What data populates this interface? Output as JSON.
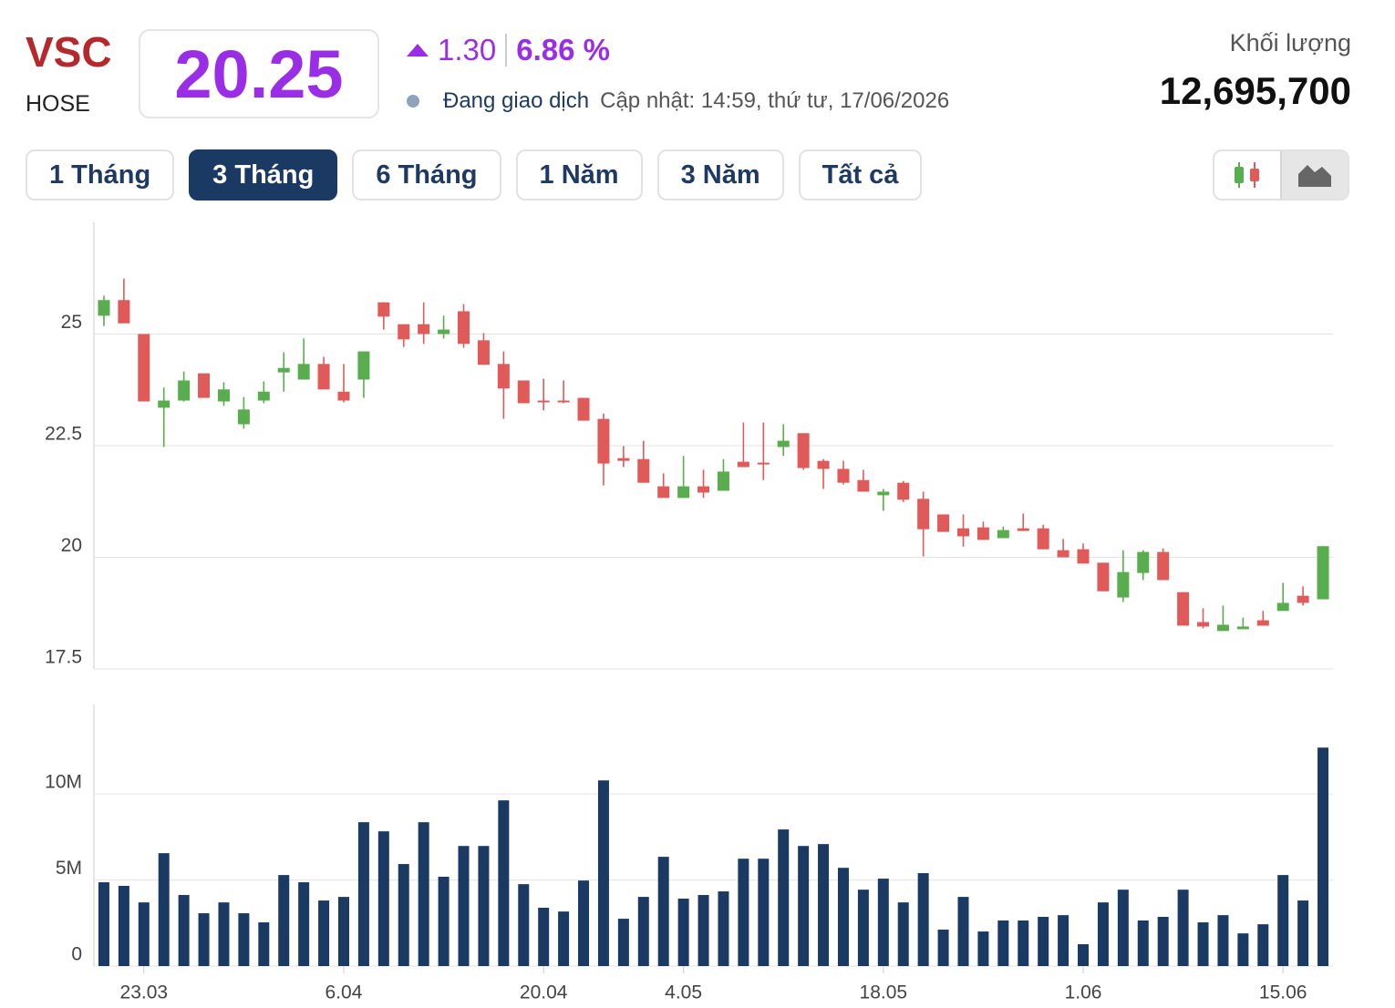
{
  "header": {
    "symbol": "VSC",
    "exchange": "HOSE",
    "price": "20.25",
    "change": "1.30",
    "change_percent": "6.86 %",
    "status": "Đang giao dịch",
    "updated": "Cập nhật: 14:59, thứ tư, 17/06/2026",
    "volume_label": "Khối lượng",
    "volume": "12,695,700"
  },
  "tabs": {
    "items": [
      "1 Tháng",
      "3 Tháng",
      "6 Tháng",
      "1 Năm",
      "3 Năm",
      "Tất cả"
    ],
    "active": 1
  },
  "chart_data": [
    {
      "type": "candlestick",
      "up_color": "#5aad4e",
      "down_color": "#e05a5a",
      "grid": true,
      "ylim": [
        17.5,
        27.5
      ],
      "yticks": [
        17.5,
        20,
        22.5,
        25
      ],
      "open": [
        25.41,
        25.76,
        25.0,
        23.35,
        23.51,
        24.12,
        23.49,
        22.98,
        23.51,
        24.14,
        23.98,
        24.33,
        23.71,
        23.98,
        25.71,
        25.22,
        25.22,
        25.0,
        25.51,
        24.86,
        24.33,
        23.96,
        23.51,
        23.51,
        23.57,
        23.1,
        22.22,
        22.2,
        21.59,
        21.33,
        21.59,
        21.49,
        22.14,
        22.12,
        22.47,
        22.78,
        22.16,
        21.98,
        21.73,
        21.39,
        21.67,
        21.31,
        20.96,
        20.65,
        20.67,
        20.43,
        20.65,
        20.65,
        20.16,
        20.18,
        19.88,
        19.1,
        19.65,
        20.12,
        19.22,
        18.55,
        18.35,
        18.39,
        18.59,
        18.8,
        19.14,
        19.06
      ],
      "high": [
        25.86,
        26.24,
        25.0,
        23.8,
        24.16,
        24.12,
        23.92,
        23.59,
        23.94,
        24.59,
        24.9,
        24.49,
        24.33,
        24.61,
        25.71,
        25.22,
        25.71,
        25.41,
        25.67,
        25.02,
        24.61,
        23.96,
        24.0,
        23.96,
        23.57,
        23.22,
        22.49,
        22.61,
        21.88,
        22.27,
        21.96,
        22.2,
        23.02,
        23.02,
        22.98,
        22.78,
        22.2,
        22.16,
        21.96,
        21.53,
        21.71,
        21.47,
        20.96,
        20.96,
        20.8,
        20.69,
        20.98,
        20.73,
        20.41,
        20.31,
        19.88,
        20.16,
        20.16,
        20.2,
        19.22,
        18.86,
        18.92,
        18.65,
        18.8,
        19.43,
        19.35,
        20.25
      ],
      "low": [
        25.18,
        25.24,
        23.49,
        22.47,
        23.49,
        23.57,
        23.39,
        22.88,
        23.45,
        23.71,
        23.98,
        23.76,
        23.47,
        23.57,
        25.1,
        24.71,
        24.78,
        24.9,
        24.69,
        24.31,
        23.1,
        23.45,
        23.29,
        23.45,
        23.06,
        21.61,
        22.02,
        21.67,
        21.33,
        21.33,
        21.33,
        21.49,
        22.02,
        21.73,
        22.27,
        21.96,
        21.53,
        21.63,
        21.47,
        21.04,
        21.24,
        20.02,
        20.57,
        20.24,
        20.39,
        20.43,
        20.59,
        20.18,
        20.0,
        19.86,
        19.24,
        19.0,
        19.49,
        19.49,
        18.47,
        18.41,
        18.35,
        18.39,
        18.47,
        18.8,
        18.92,
        19.06
      ],
      "close": [
        25.76,
        25.24,
        23.49,
        23.51,
        23.96,
        23.57,
        23.76,
        23.31,
        23.71,
        24.24,
        24.33,
        23.76,
        23.51,
        24.61,
        25.39,
        24.88,
        25.0,
        25.1,
        24.78,
        24.31,
        23.78,
        23.45,
        23.47,
        23.47,
        23.06,
        22.1,
        22.16,
        21.67,
        21.33,
        21.59,
        21.45,
        21.92,
        22.02,
        22.08,
        22.61,
        22.0,
        21.98,
        21.67,
        21.47,
        21.47,
        21.29,
        20.63,
        20.57,
        20.47,
        20.39,
        20.61,
        20.59,
        20.18,
        20.0,
        19.86,
        19.24,
        19.67,
        20.12,
        19.49,
        18.47,
        18.45,
        18.49,
        18.45,
        18.47,
        18.98,
        18.98,
        20.25
      ]
    },
    {
      "type": "bar",
      "color": "#1b3a63",
      "grid": true,
      "ylim": [
        0,
        15200000
      ],
      "yticks": [
        0,
        {
          "value": 5000000,
          "label": "5M"
        },
        {
          "value": 10000000,
          "label": "10M"
        }
      ],
      "categories": [
        null,
        null,
        "23.03",
        null,
        null,
        null,
        null,
        null,
        null,
        null,
        null,
        null,
        "6.04",
        null,
        null,
        null,
        null,
        null,
        null,
        null,
        null,
        null,
        "20.04",
        null,
        null,
        null,
        null,
        null,
        null,
        "4.05",
        null,
        null,
        null,
        null,
        null,
        null,
        null,
        null,
        null,
        "18.05",
        null,
        null,
        null,
        null,
        null,
        null,
        null,
        null,
        null,
        "1.06",
        null,
        null,
        null,
        null,
        null,
        null,
        null,
        null,
        null,
        "15.06",
        null,
        null
      ],
      "values": [
        4870000,
        4660000,
        3700000,
        6560000,
        4130000,
        3070000,
        3700000,
        3070000,
        2540000,
        5290000,
        4870000,
        3810000,
        4020000,
        8360000,
        7830000,
        5930000,
        8360000,
        5190000,
        6980000,
        6980000,
        9630000,
        4760000,
        3390000,
        3170000,
        4970000,
        10790000,
        2750000,
        4020000,
        6350000,
        3920000,
        4130000,
        4340000,
        6240000,
        6240000,
        7940000,
        6980000,
        7090000,
        5710000,
        4440000,
        5080000,
        3700000,
        5400000,
        2120000,
        4020000,
        2010000,
        2650000,
        2650000,
        2860000,
        2960000,
        1270000,
        3700000,
        4440000,
        2650000,
        2860000,
        4440000,
        2540000,
        2960000,
        1900000,
        2430000,
        5290000,
        3810000,
        12695700
      ]
    }
  ]
}
